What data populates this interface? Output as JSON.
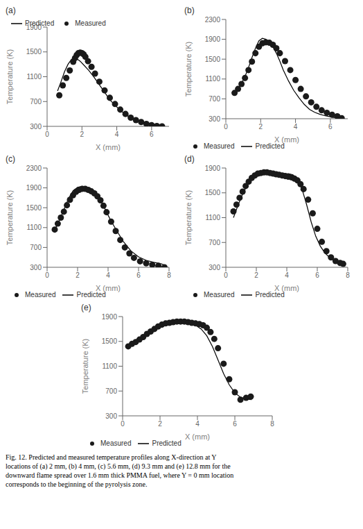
{
  "caption": "Fig. 12.  Predicted and measured temperature profiles along X-direction at Y\nlocations of (a) 2 mm, (b) 4 mm, (c) 5.6 mm, (d) 9.3 mm and (e) 12.8 mm for the\ndownward flame spread over 1.6 mm thick PMMA fuel, where Y = 0 mm location\ncorresponds to the beginning of the pyrolysis zone.",
  "chart_data": [
    {
      "type": "line",
      "title": "(a)",
      "xlabel": "X (mm)",
      "ylabel": "Temperature (K)",
      "xlim": [
        0,
        7
      ],
      "ylim": [
        300,
        1900
      ],
      "xticks": [
        0,
        2,
        4,
        6
      ],
      "yticks": [
        300,
        700,
        1100,
        1500,
        1900
      ],
      "legend": "upper right",
      "grid": false,
      "series": [
        {
          "name": "Predicted",
          "type": "line",
          "color": "#000000",
          "x": [
            0.6,
            0.8,
            1.0,
            1.2,
            1.4,
            1.55,
            1.7,
            1.9,
            2.1,
            2.4,
            2.7,
            3.0,
            3.3,
            3.6,
            3.9,
            4.2,
            4.5,
            4.8,
            5.2,
            5.6,
            6.0,
            6.4,
            6.7
          ],
          "values": [
            870,
            1020,
            1180,
            1300,
            1380,
            1400,
            1390,
            1350,
            1290,
            1200,
            1090,
            970,
            850,
            730,
            640,
            560,
            490,
            440,
            400,
            370,
            340,
            320,
            305
          ]
        },
        {
          "name": "Measured",
          "type": "scatter",
          "color": "#1a1a1a",
          "x": [
            0.7,
            0.9,
            1.1,
            1.3,
            1.5,
            1.6,
            1.7,
            1.8,
            1.9,
            2.0,
            2.1,
            2.2,
            2.35,
            2.55,
            2.75,
            3.0,
            3.3,
            3.6,
            3.9,
            4.2,
            4.5,
            4.8,
            5.1,
            5.4,
            5.7,
            6.0,
            6.3,
            6.6
          ],
          "values": [
            800,
            960,
            1080,
            1200,
            1340,
            1400,
            1450,
            1480,
            1490,
            1480,
            1460,
            1420,
            1350,
            1260,
            1150,
            1020,
            880,
            760,
            660,
            570,
            500,
            440,
            400,
            370,
            340,
            320,
            305,
            300
          ]
        }
      ]
    },
    {
      "type": "line",
      "title": "(b)",
      "xlabel": "X (mm)",
      "ylabel": "Temperature (K)",
      "xlim": [
        0,
        7
      ],
      "ylim": [
        300,
        2300
      ],
      "xticks": [
        0,
        2,
        4,
        6
      ],
      "yticks": [
        300,
        700,
        1100,
        1500,
        1900,
        2300
      ],
      "legend": "lower left",
      "grid": false,
      "series": [
        {
          "name": "Measured",
          "type": "scatter",
          "color": "#1a1a1a",
          "x": [
            0.5,
            0.7,
            0.9,
            1.1,
            1.3,
            1.5,
            1.7,
            1.9,
            2.1,
            2.3,
            2.5,
            2.7,
            2.9,
            3.1,
            3.4,
            3.7,
            4.0,
            4.3,
            4.6,
            4.9,
            5.2,
            5.5,
            5.8,
            6.1,
            6.4,
            6.65
          ],
          "values": [
            820,
            900,
            1000,
            1120,
            1280,
            1450,
            1620,
            1750,
            1820,
            1840,
            1830,
            1790,
            1720,
            1620,
            1460,
            1280,
            1080,
            900,
            750,
            630,
            540,
            470,
            420,
            380,
            350,
            310
          ]
        },
        {
          "name": "Predicted",
          "type": "line",
          "color": "#000000",
          "x": [
            0.5,
            0.7,
            0.9,
            1.1,
            1.3,
            1.5,
            1.7,
            1.9,
            2.1,
            2.3,
            2.5,
            2.7,
            2.9,
            3.1,
            3.3,
            3.6,
            3.9,
            4.2,
            4.5,
            4.8,
            5.1,
            5.4,
            5.7,
            6.0,
            6.3,
            6.6
          ],
          "values": [
            820,
            900,
            1010,
            1150,
            1330,
            1530,
            1720,
            1870,
            1920,
            1900,
            1850,
            1760,
            1620,
            1460,
            1280,
            1060,
            870,
            720,
            590,
            490,
            430,
            390,
            360,
            340,
            320,
            305
          ]
        }
      ]
    },
    {
      "type": "line",
      "title": "(c)",
      "xlabel": "X (mm)",
      "ylabel": "Temperature (K)",
      "xlim": [
        0,
        8
      ],
      "ylim": [
        300,
        2300
      ],
      "xticks": [
        0,
        2,
        4,
        6,
        8
      ],
      "yticks": [
        300,
        700,
        1100,
        1500,
        1900,
        2300
      ],
      "legend": "lower left",
      "grid": false,
      "series": [
        {
          "name": "Measured",
          "type": "scatter",
          "color": "#1a1a1a",
          "x": [
            0.5,
            0.7,
            0.9,
            1.1,
            1.3,
            1.5,
            1.7,
            1.9,
            2.1,
            2.3,
            2.5,
            2.7,
            2.9,
            3.1,
            3.3,
            3.5,
            3.7,
            3.9,
            4.2,
            4.5,
            4.8,
            5.1,
            5.4,
            5.7,
            6.1,
            6.5,
            6.9,
            7.3,
            7.7
          ],
          "values": [
            1060,
            1180,
            1300,
            1420,
            1550,
            1660,
            1750,
            1820,
            1860,
            1880,
            1880,
            1860,
            1830,
            1790,
            1730,
            1650,
            1540,
            1410,
            1220,
            1030,
            850,
            700,
            580,
            490,
            420,
            380,
            350,
            330,
            300
          ]
        },
        {
          "name": "Predicted",
          "type": "line",
          "color": "#000000",
          "x": [
            0.5,
            0.8,
            1.1,
            1.4,
            1.7,
            2.0,
            2.3,
            2.6,
            2.9,
            3.1,
            3.3,
            3.5,
            3.7,
            3.9,
            4.2,
            4.6,
            5.0,
            5.5,
            6.0,
            6.5,
            7.0,
            7.5,
            7.8
          ],
          "values": [
            1050,
            1240,
            1460,
            1680,
            1840,
            1910,
            1930,
            1900,
            1840,
            1790,
            1730,
            1650,
            1540,
            1410,
            1230,
            1020,
            820,
            630,
            510,
            440,
            400,
            370,
            330
          ]
        }
      ]
    },
    {
      "type": "line",
      "title": "(d)",
      "xlabel": "X (mm)",
      "ylabel": "Temperature (K)",
      "xlim": [
        0,
        8
      ],
      "ylim": [
        300,
        1900
      ],
      "xticks": [
        0,
        2,
        4,
        6,
        8
      ],
      "yticks": [
        300,
        700,
        1100,
        1500,
        1900
      ],
      "legend": "lower left",
      "grid": false,
      "series": [
        {
          "name": "Measured",
          "type": "scatter",
          "color": "#1a1a1a",
          "x": [
            0.5,
            0.7,
            0.9,
            1.1,
            1.3,
            1.5,
            1.7,
            1.9,
            2.1,
            2.3,
            2.5,
            2.7,
            2.9,
            3.1,
            3.3,
            3.5,
            3.7,
            3.9,
            4.1,
            4.3,
            4.5,
            4.7,
            4.9,
            5.1,
            5.4,
            5.7,
            6.0,
            6.3,
            6.6,
            6.9,
            7.2,
            7.5,
            7.7
          ],
          "values": [
            1200,
            1310,
            1420,
            1520,
            1610,
            1680,
            1740,
            1780,
            1810,
            1820,
            1830,
            1830,
            1820,
            1810,
            1800,
            1790,
            1780,
            1770,
            1760,
            1750,
            1730,
            1700,
            1640,
            1560,
            1390,
            1170,
            920,
            710,
            560,
            460,
            400,
            370,
            355
          ]
        },
        {
          "name": "Predicted",
          "type": "line",
          "color": "#000000",
          "x": [
            0.5,
            0.8,
            1.1,
            1.4,
            1.7,
            2.0,
            2.3,
            2.5,
            2.7,
            2.9,
            3.1,
            3.3,
            3.5,
            3.7,
            3.9,
            4.1,
            4.4,
            4.7,
            5.0,
            5.3,
            5.6,
            5.9,
            6.2,
            6.5,
            6.8,
            7.1,
            7.4,
            7.7
          ],
          "values": [
            1100,
            1300,
            1480,
            1620,
            1720,
            1790,
            1820,
            1840,
            1840,
            1830,
            1810,
            1800,
            1790,
            1790,
            1800,
            1810,
            1790,
            1720,
            1560,
            1310,
            1030,
            800,
            640,
            530,
            460,
            410,
            380,
            360
          ]
        }
      ]
    },
    {
      "type": "line",
      "title": "(e)",
      "xlabel": "X (mm)",
      "ylabel": "Temperature (K)",
      "xlim": [
        0,
        8
      ],
      "ylim": [
        300,
        1900
      ],
      "xticks": [
        0,
        2,
        4,
        6,
        8
      ],
      "yticks": [
        300,
        700,
        1100,
        1500,
        1900
      ],
      "legend": "lower left",
      "grid": false,
      "series": [
        {
          "name": "Measured",
          "type": "scatter",
          "color": "#1a1a1a",
          "x": [
            0.3,
            0.5,
            0.7,
            0.9,
            1.1,
            1.3,
            1.5,
            1.7,
            1.9,
            2.1,
            2.3,
            2.5,
            2.7,
            2.9,
            3.1,
            3.3,
            3.5,
            3.7,
            3.9,
            4.1,
            4.3,
            4.5,
            4.7,
            4.9,
            5.1,
            5.4,
            5.7,
            6.0,
            6.3,
            6.6,
            6.85
          ],
          "values": [
            1420,
            1460,
            1490,
            1530,
            1570,
            1620,
            1660,
            1700,
            1740,
            1770,
            1790,
            1800,
            1810,
            1820,
            1820,
            1820,
            1810,
            1800,
            1790,
            1780,
            1760,
            1720,
            1650,
            1540,
            1390,
            1140,
            890,
            680,
            560,
            590,
            610
          ]
        },
        {
          "name": "Predicted",
          "type": "line",
          "color": "#000000",
          "x": [
            0.3,
            0.6,
            0.9,
            1.2,
            1.5,
            1.8,
            2.1,
            2.4,
            2.7,
            3.0,
            3.3,
            3.6,
            3.9,
            4.2,
            4.5,
            4.8,
            5.1,
            5.4,
            5.7,
            6.0,
            6.3,
            6.6,
            6.9
          ],
          "values": [
            1390,
            1480,
            1550,
            1610,
            1660,
            1710,
            1750,
            1770,
            1790,
            1800,
            1800,
            1790,
            1760,
            1700,
            1590,
            1420,
            1200,
            980,
            800,
            670,
            600,
            570,
            560
          ]
        }
      ]
    }
  ]
}
